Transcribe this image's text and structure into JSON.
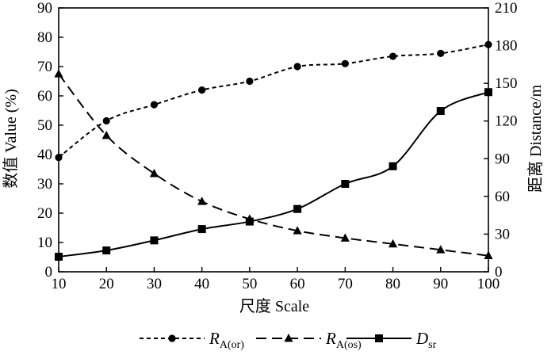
{
  "chart_data": {
    "type": "line",
    "xlabel": "尺度  Scale",
    "ylabel_left": "数值 Value (%)",
    "ylabel_right": "距离  Distance/m",
    "x": [
      10,
      20,
      30,
      40,
      50,
      60,
      70,
      80,
      90,
      100
    ],
    "xlim": [
      10,
      100
    ],
    "ylim_left": [
      0,
      90
    ],
    "ylim_right": [
      0,
      210
    ],
    "xticks": [
      "10",
      "20",
      "30",
      "40",
      "50",
      "60",
      "70",
      "80",
      "90",
      "100"
    ],
    "yticks_left": [
      "0",
      "10",
      "20",
      "30",
      "40",
      "50",
      "60",
      "70",
      "80",
      "90"
    ],
    "yticks_right": [
      "0",
      "30",
      "60",
      "90",
      "120",
      "150",
      "180",
      "210"
    ],
    "grid": false,
    "legend_position": "bottom",
    "series": [
      {
        "name": "R_A(or)",
        "legend_main": "R",
        "legend_sub": "A(or)",
        "axis": "left",
        "style": "dotted",
        "marker": "circle",
        "values": [
          39,
          51.5,
          57,
          62,
          65,
          70,
          71,
          73.5,
          74.5,
          77.5
        ]
      },
      {
        "name": "R_A(os)",
        "legend_main": "R",
        "legend_sub": "A(os)",
        "axis": "left",
        "style": "dashed",
        "marker": "triangle",
        "values": [
          67.5,
          46.5,
          33.5,
          24,
          18,
          14,
          11.5,
          9.5,
          7.5,
          5.5
        ]
      },
      {
        "name": "D_sr",
        "legend_main": "D",
        "legend_sub": "sr",
        "axis": "right",
        "style": "solid",
        "marker": "square",
        "values": [
          12,
          17,
          25,
          34,
          40,
          50,
          70,
          84,
          128,
          143
        ]
      }
    ]
  }
}
